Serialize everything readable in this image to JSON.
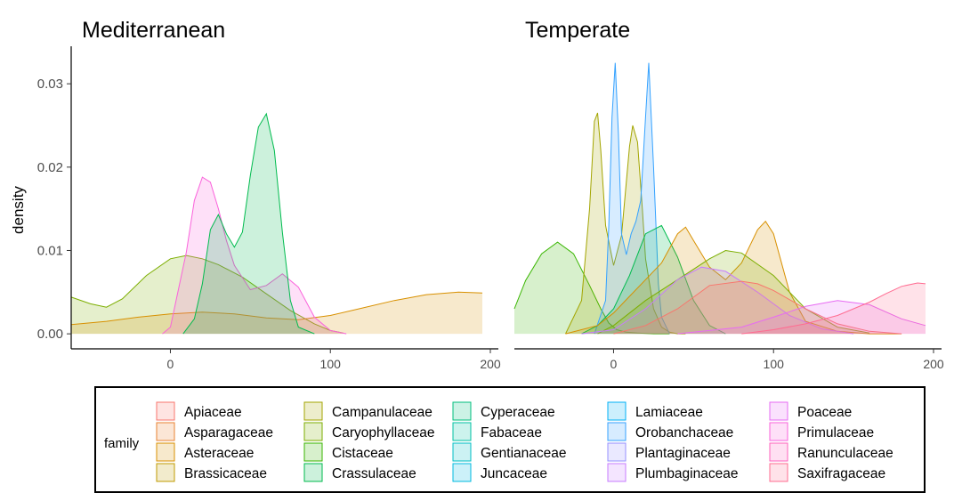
{
  "chart_data": {
    "type": "area",
    "ylabel": "density",
    "legend": {
      "title": "family",
      "position": "bottom",
      "columns": [
        [
          "Apiaceae",
          "Asparagaceae",
          "Asteraceae",
          "Brassicaceae"
        ],
        [
          "Campanulaceae",
          "Caryophyllaceae",
          "Cistaceae",
          "Crassulaceae"
        ],
        [
          "Cyperaceae",
          "Fabaceae",
          "Gentianaceae",
          "Juncaceae"
        ],
        [
          "Lamiaceae",
          "Orobanchaceae",
          "Plantaginaceae",
          "Plumbaginaceae"
        ],
        [
          "Poaceae",
          "Primulaceae",
          "Ranunculaceae",
          "Saxifragaceae"
        ]
      ],
      "colors": {
        "Apiaceae": "#F8766D",
        "Asparagaceae": "#EA8331",
        "Asteraceae": "#D89000",
        "Brassicaceae": "#C09B00",
        "Campanulaceae": "#A3A500",
        "Caryophyllaceae": "#7CAE00",
        "Cistaceae": "#39B600",
        "Crassulaceae": "#00BB4E",
        "Cyperaceae": "#00BF7D",
        "Fabaceae": "#00C1A3",
        "Gentianaceae": "#00BFC4",
        "Juncaceae": "#00BAE0",
        "Lamiaceae": "#00B0F6",
        "Orobanchaceae": "#35A2FF",
        "Plantaginaceae": "#9590FF",
        "Plumbaginaceae": "#C77CFF",
        "Poaceae": "#E76BF3",
        "Primulaceae": "#FA62DB",
        "Ranunculaceae": "#FF62BC",
        "Saxifragaceae": "#FF6C91"
      }
    },
    "x_ticks": [
      0,
      100,
      200
    ],
    "y_ticks": [
      "0.00",
      "0.01",
      "0.02",
      "0.03"
    ],
    "xlim": [
      -62,
      205
    ],
    "ylim": [
      -0.0018,
      0.0345
    ],
    "panels": [
      {
        "title": "Mediterranean",
        "series": [
          {
            "name": "Caryophyllaceae",
            "x": [
              -62,
              -50,
              -40,
              -30,
              -15,
              0,
              10,
              20,
              30,
              45,
              60,
              75,
              90,
              100,
              108
            ],
            "y": [
              0.0044,
              0.0036,
              0.0032,
              0.0042,
              0.007,
              0.009,
              0.0094,
              0.009,
              0.0083,
              0.0068,
              0.0048,
              0.0028,
              0.0012,
              0.0004,
              0.0001
            ]
          },
          {
            "name": "Asteraceae",
            "x": [
              -62,
              -40,
              -20,
              0,
              20,
              40,
              60,
              80,
              100,
              120,
              140,
              160,
              180,
              195
            ],
            "y": [
              0.0011,
              0.0015,
              0.002,
              0.0024,
              0.0026,
              0.0024,
              0.0019,
              0.0017,
              0.0022,
              0.0031,
              0.004,
              0.0047,
              0.005,
              0.0049
            ]
          },
          {
            "name": "Primulaceae",
            "x": [
              -5,
              0,
              10,
              15,
              20,
              25,
              30,
              35,
              40,
              50,
              60,
              70,
              80,
              90,
              100,
              110
            ],
            "y": [
              0.0,
              0.0008,
              0.0098,
              0.016,
              0.0188,
              0.0182,
              0.015,
              0.0112,
              0.0082,
              0.0053,
              0.0058,
              0.0072,
              0.0056,
              0.002,
              0.0004,
              0.0
            ]
          },
          {
            "name": "Crassulaceae",
            "x": [
              8,
              15,
              20,
              25,
              30,
              35,
              40,
              45,
              50,
              55,
              60,
              65,
              70,
              75,
              80,
              90
            ],
            "y": [
              0.0,
              0.0018,
              0.006,
              0.0125,
              0.0143,
              0.012,
              0.0104,
              0.0122,
              0.019,
              0.0248,
              0.0264,
              0.022,
              0.0122,
              0.004,
              0.0008,
              0.0
            ]
          }
        ]
      },
      {
        "title": "Temperate",
        "series": [
          {
            "name": "Cistaceae",
            "x": [
              -62,
              -55,
              -45,
              -35,
              -25,
              -15,
              -8,
              -3,
              2,
              8,
              15,
              25,
              35
            ],
            "y": [
              0.003,
              0.0064,
              0.0096,
              0.011,
              0.0096,
              0.0058,
              0.003,
              0.0013,
              0.0005,
              0.0002,
              0.0001,
              0.0,
              0.0
            ]
          },
          {
            "name": "Campanulaceae",
            "x": [
              -30,
              -20,
              -15,
              -12,
              -10,
              -8,
              -5,
              0,
              5,
              10,
              12,
              15,
              18,
              20,
              25,
              30,
              35,
              40,
              45
            ],
            "y": [
              0.0,
              0.004,
              0.015,
              0.0255,
              0.0265,
              0.022,
              0.013,
              0.0082,
              0.0118,
              0.0225,
              0.025,
              0.023,
              0.015,
              0.009,
              0.003,
              0.0008,
              0.0002,
              0.0,
              0.0
            ]
          },
          {
            "name": "Orobanchaceae",
            "x": [
              -12,
              -5,
              -3,
              -1,
              1,
              3,
              5,
              8,
              11,
              14,
              17,
              20,
              22,
              25,
              28,
              30,
              35
            ],
            "y": [
              0.0,
              0.004,
              0.013,
              0.026,
              0.0325,
              0.024,
              0.012,
              0.0095,
              0.012,
              0.0135,
              0.016,
              0.026,
              0.0325,
              0.02,
              0.006,
              0.002,
              0.0
            ]
          },
          {
            "name": "Crassulaceae",
            "x": [
              -20,
              -10,
              0,
              10,
              20,
              30,
              40,
              50,
              60,
              70
            ],
            "y": [
              0.0,
              0.001,
              0.003,
              0.007,
              0.012,
              0.013,
              0.0092,
              0.004,
              0.001,
              0.0
            ]
          },
          {
            "name": "Asteraceae",
            "x": [
              -30,
              -10,
              0,
              10,
              20,
              30,
              40,
              45,
              50,
              60,
              70,
              80,
              90,
              95,
              100,
              110,
              120,
              140,
              160,
              180
            ],
            "y": [
              0.0,
              0.001,
              0.0025,
              0.0045,
              0.0065,
              0.0085,
              0.012,
              0.0128,
              0.0112,
              0.008,
              0.0065,
              0.0085,
              0.0125,
              0.0135,
              0.012,
              0.005,
              0.0015,
              0.0003,
              0.0,
              0.0
            ]
          },
          {
            "name": "Caryophyllaceae",
            "x": [
              -10,
              0,
              20,
              40,
              60,
              70,
              80,
              100,
              120,
              140,
              160
            ],
            "y": [
              0.0,
              0.001,
              0.004,
              0.0065,
              0.009,
              0.01,
              0.0097,
              0.007,
              0.003,
              0.0008,
              0.0001
            ]
          },
          {
            "name": "Plumbaginaceae",
            "x": [
              -20,
              0,
              20,
              40,
              55,
              70,
              90,
              110,
              130,
              150
            ],
            "y": [
              0.0,
              0.0005,
              0.003,
              0.0065,
              0.008,
              0.0075,
              0.005,
              0.0022,
              0.0006,
              0.0
            ]
          },
          {
            "name": "Apiaceae",
            "x": [
              0,
              20,
              40,
              60,
              80,
              90,
              100,
              120,
              140,
              160,
              180
            ],
            "y": [
              0.0,
              0.001,
              0.003,
              0.0058,
              0.0063,
              0.006,
              0.0052,
              0.003,
              0.0012,
              0.0003,
              0.0
            ]
          },
          {
            "name": "Poaceae",
            "x": [
              40,
              80,
              100,
              120,
              140,
              160,
              180,
              195
            ],
            "y": [
              0.0,
              0.0008,
              0.002,
              0.0033,
              0.004,
              0.0035,
              0.0018,
              0.001
            ]
          },
          {
            "name": "Saxifragaceae",
            "x": [
              80,
              100,
              120,
              140,
              160,
              170,
              180,
              190,
              195
            ],
            "y": [
              0.0,
              0.0005,
              0.0012,
              0.0022,
              0.0038,
              0.0048,
              0.0057,
              0.0061,
              0.006
            ]
          }
        ]
      }
    ]
  }
}
